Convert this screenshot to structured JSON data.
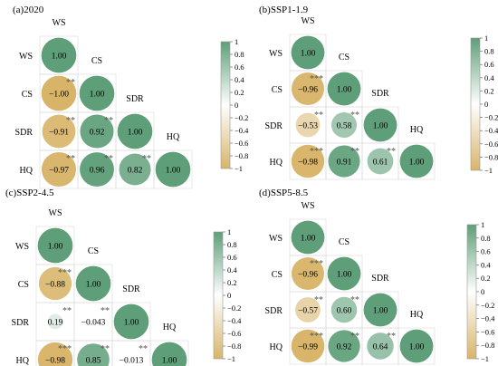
{
  "colors": {
    "positive": "#5e9e78",
    "negative": "#d8b468",
    "neutral": "#ffffff",
    "grid": "#d9d9d9",
    "star": "#555555"
  },
  "chart_data": [
    {
      "type": "heatmap",
      "title": "(a)2020",
      "variables": [
        "WS",
        "CS",
        "SDR",
        "HQ"
      ],
      "cells": [
        {
          "row": "CS",
          "col": "WS",
          "value": -1.0,
          "label": "−1.00",
          "sig": "**"
        },
        {
          "row": "SDR",
          "col": "WS",
          "value": -0.91,
          "label": "−0.91",
          "sig": "**"
        },
        {
          "row": "SDR",
          "col": "CS",
          "value": 0.92,
          "label": "0.92",
          "sig": "**"
        },
        {
          "row": "HQ",
          "col": "WS",
          "value": -0.97,
          "label": "−0.97",
          "sig": "**"
        },
        {
          "row": "HQ",
          "col": "CS",
          "value": 0.96,
          "label": "0.96",
          "sig": "**"
        },
        {
          "row": "HQ",
          "col": "SDR",
          "value": 0.82,
          "label": "0.82",
          "sig": "**"
        }
      ],
      "diagonal_label": "1.00",
      "colorbar": {
        "range": [
          -1,
          1
        ],
        "ticks": [
          "1",
          "0.8",
          "0.6",
          "0.4",
          "0.2",
          "0",
          "−0.2",
          "−0.4",
          "−0.6",
          "−0.8",
          "−1"
        ]
      }
    },
    {
      "type": "heatmap",
      "title": "(b)SSP1-1.9",
      "variables": [
        "WS",
        "CS",
        "SDR",
        "HQ"
      ],
      "cells": [
        {
          "row": "CS",
          "col": "WS",
          "value": -0.96,
          "label": "−0.96",
          "sig": "***"
        },
        {
          "row": "SDR",
          "col": "WS",
          "value": -0.53,
          "label": "−0.53",
          "sig": "**"
        },
        {
          "row": "SDR",
          "col": "CS",
          "value": 0.58,
          "label": "0.58",
          "sig": "**"
        },
        {
          "row": "HQ",
          "col": "WS",
          "value": -0.98,
          "label": "−0.98",
          "sig": "***"
        },
        {
          "row": "HQ",
          "col": "CS",
          "value": 0.91,
          "label": "0.91",
          "sig": "**"
        },
        {
          "row": "HQ",
          "col": "SDR",
          "value": 0.61,
          "label": "0.61",
          "sig": "**"
        }
      ],
      "diagonal_label": "1.00",
      "colorbar": {
        "range": [
          -1,
          1
        ],
        "ticks": [
          "1",
          "0.8",
          "0.6",
          "0.4",
          "0.2",
          "0",
          "−0.2",
          "−0.4",
          "−0.6",
          "−0.8",
          "−1"
        ]
      }
    },
    {
      "type": "heatmap",
      "title": "(c)SSP2-4.5",
      "variables": [
        "WS",
        "CS",
        "SDR",
        "HQ"
      ],
      "cells": [
        {
          "row": "CS",
          "col": "WS",
          "value": -0.88,
          "label": "−0.88",
          "sig": "***"
        },
        {
          "row": "SDR",
          "col": "WS",
          "value": 0.19,
          "label": "0.19",
          "sig": "**"
        },
        {
          "row": "SDR",
          "col": "CS",
          "value": -0.043,
          "label": "−0.043",
          "sig": "**"
        },
        {
          "row": "HQ",
          "col": "WS",
          "value": -0.98,
          "label": "−0.98",
          "sig": "***"
        },
        {
          "row": "HQ",
          "col": "CS",
          "value": 0.85,
          "label": "0.85",
          "sig": "**"
        },
        {
          "row": "HQ",
          "col": "SDR",
          "value": -0.013,
          "label": "−0.013",
          "sig": "**"
        }
      ],
      "diagonal_label": "1.00",
      "colorbar": {
        "range": [
          -1,
          1
        ],
        "ticks": [
          "1",
          "0.8",
          "0.6",
          "0.4",
          "0.2",
          "0",
          "−0.2",
          "−0.4",
          "−0.6",
          "−0.8",
          "−1"
        ]
      }
    },
    {
      "type": "heatmap",
      "title": "(d)SSP5-8.5",
      "variables": [
        "WS",
        "CS",
        "SDR",
        "HQ"
      ],
      "cells": [
        {
          "row": "CS",
          "col": "WS",
          "value": -0.96,
          "label": "−0.96",
          "sig": "***"
        },
        {
          "row": "SDR",
          "col": "WS",
          "value": -0.57,
          "label": "−0.57",
          "sig": "**"
        },
        {
          "row": "SDR",
          "col": "CS",
          "value": 0.6,
          "label": "0.60",
          "sig": "**"
        },
        {
          "row": "HQ",
          "col": "WS",
          "value": -0.99,
          "label": "−0.99",
          "sig": "***"
        },
        {
          "row": "HQ",
          "col": "CS",
          "value": 0.92,
          "label": "0.92",
          "sig": "**"
        },
        {
          "row": "HQ",
          "col": "SDR",
          "value": 0.64,
          "label": "0.64",
          "sig": "**"
        }
      ],
      "diagonal_label": "1.00",
      "colorbar": {
        "range": [
          -1,
          1
        ],
        "ticks": [
          "1",
          "0.8",
          "0.6",
          "0.4",
          "0.2",
          "0",
          "−0.2",
          "−0.4",
          "−0.6",
          "−0.8",
          "−1"
        ]
      }
    }
  ]
}
